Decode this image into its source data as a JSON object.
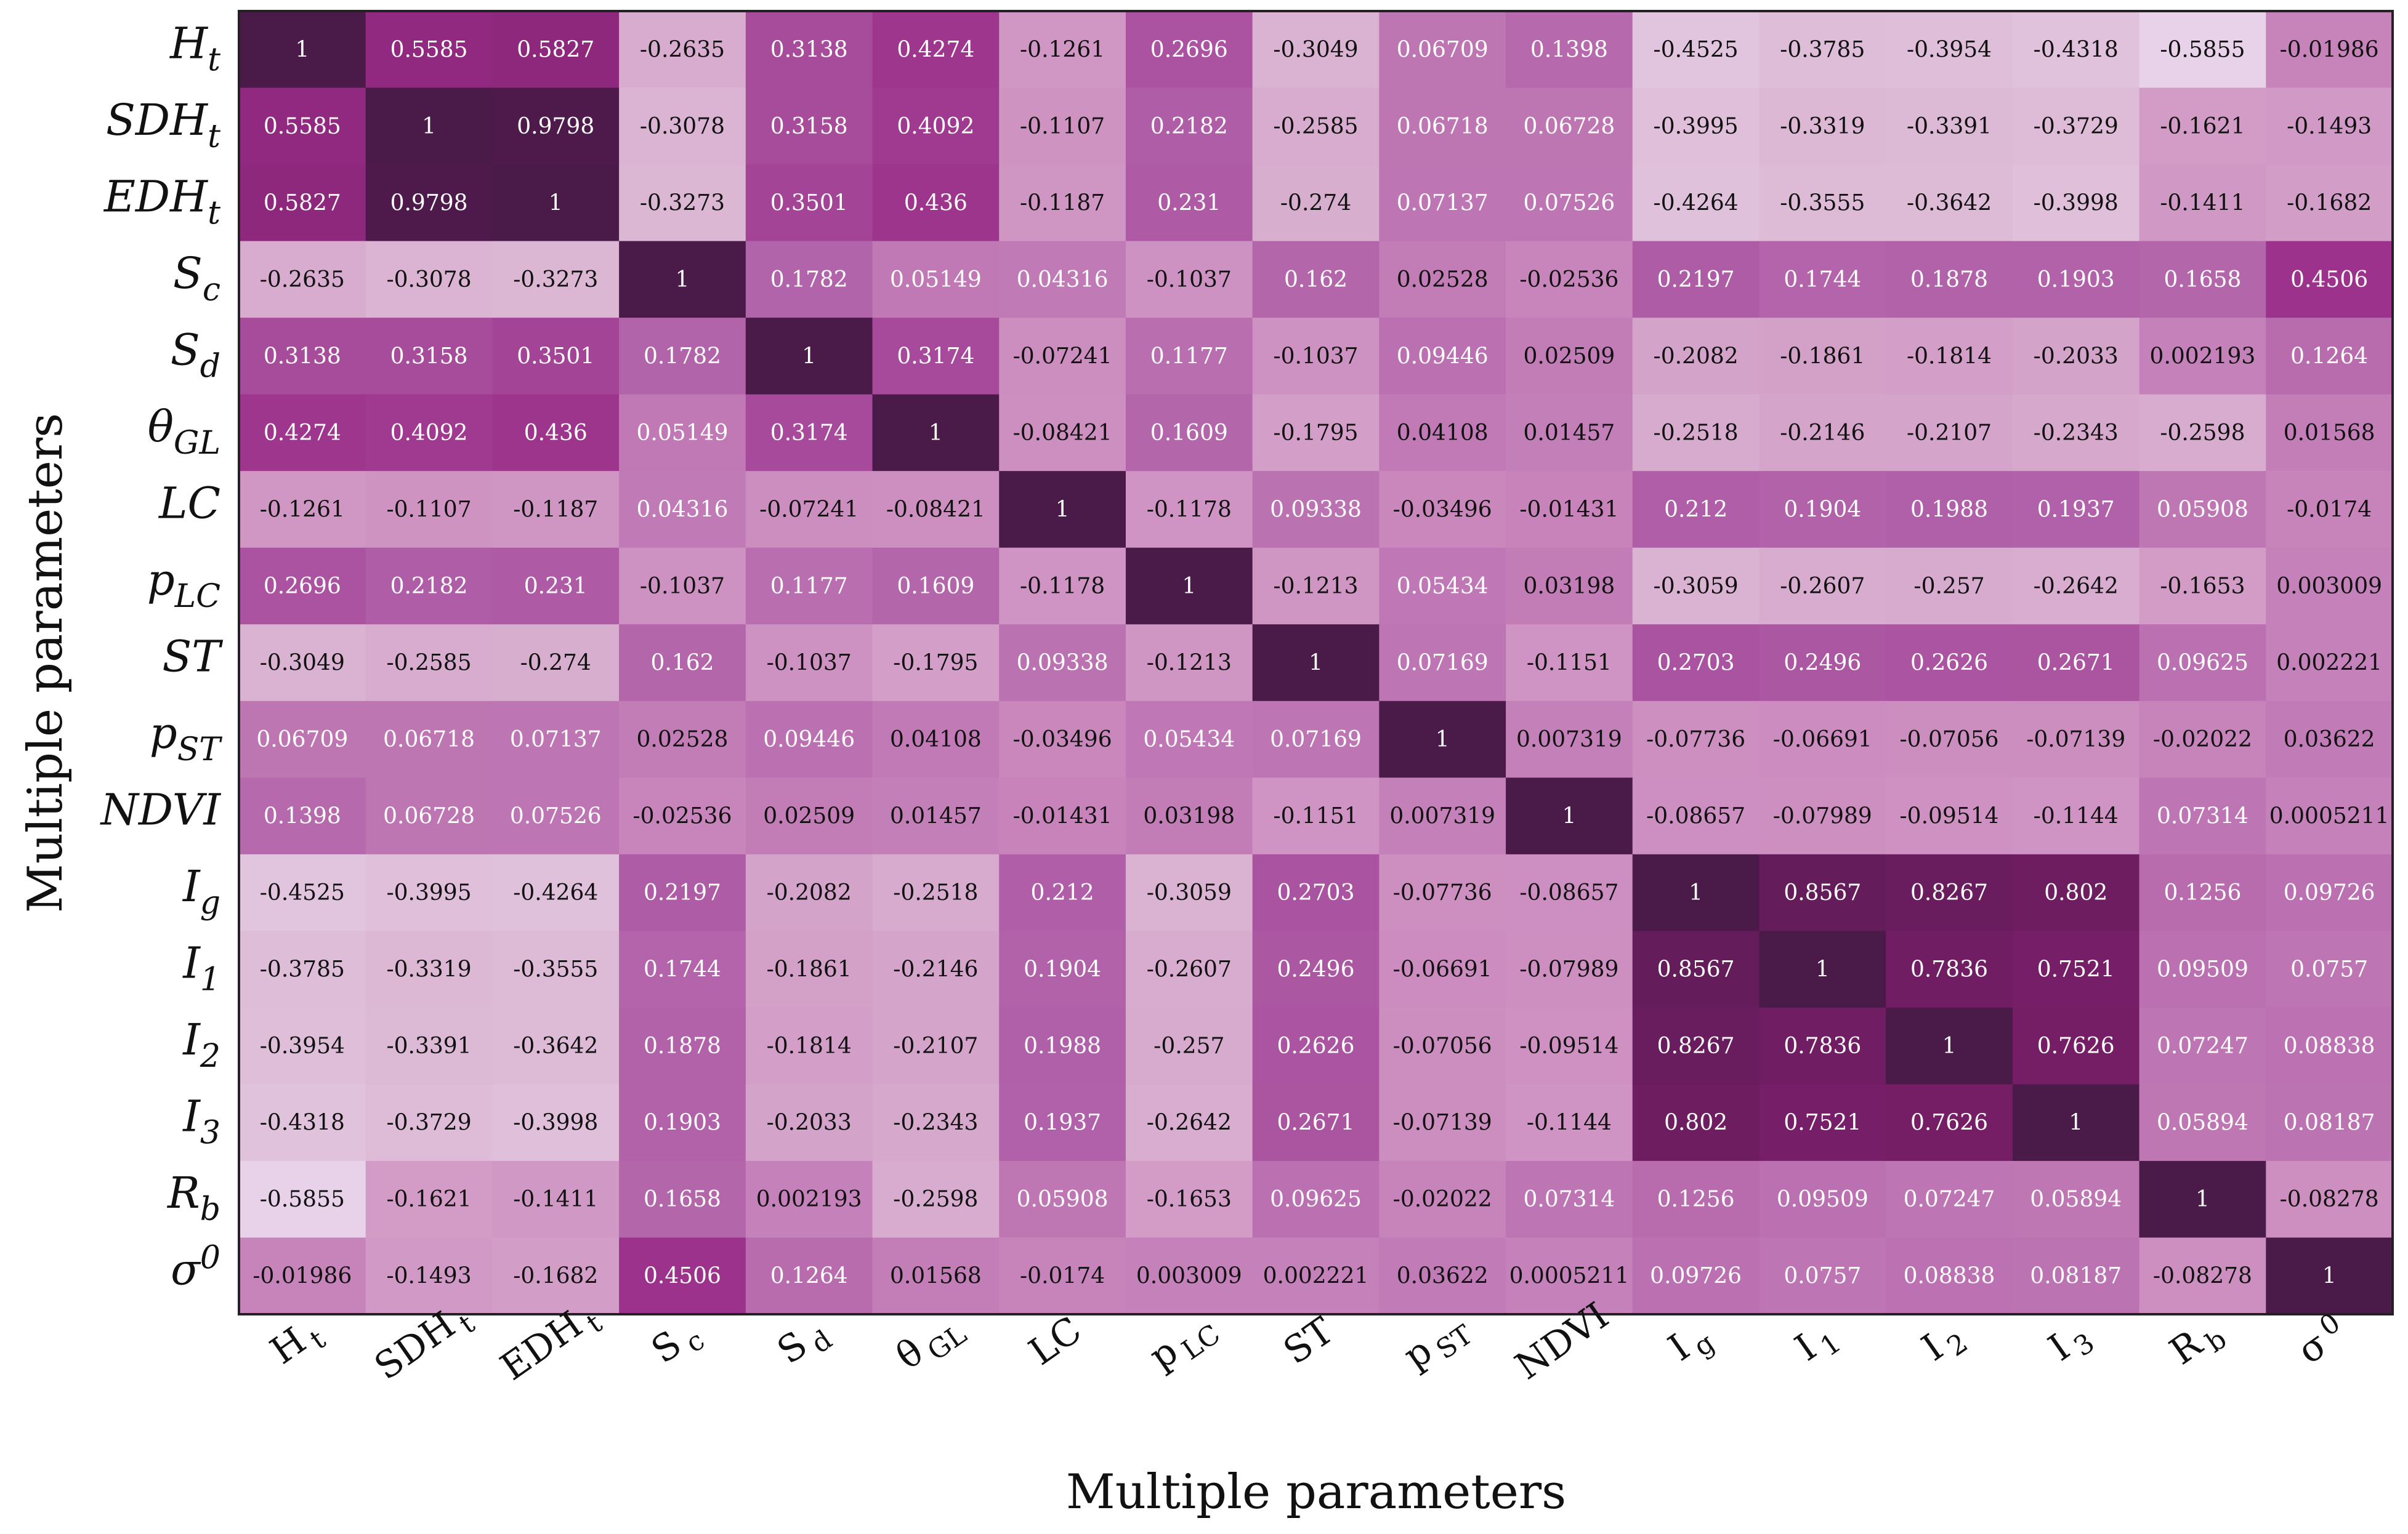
{
  "chart_data": {
    "type": "heatmap",
    "title": "",
    "xlabel": "Multiple parameters",
    "ylabel": "Multiple parameters",
    "value_range": [
      -0.6,
      1
    ],
    "colormap": [
      "#e8d3ea",
      "#dcb8d4",
      "#cc8cbf",
      "#b060a8",
      "#9b2f8a",
      "#7a1e6a",
      "#4a1a48"
    ],
    "labels": [
      {
        "base": "H",
        "sub": "t"
      },
      {
        "base": "SDH",
        "sub": "t"
      },
      {
        "base": "EDH",
        "sub": "t"
      },
      {
        "base": "S",
        "sub": "c"
      },
      {
        "base": "S",
        "sub": "d"
      },
      {
        "base": "θ",
        "sub": "GL"
      },
      {
        "base": "LC",
        "sub": ""
      },
      {
        "base": "p",
        "sub": "LC"
      },
      {
        "base": "ST",
        "sub": ""
      },
      {
        "base": "p",
        "sub": "ST"
      },
      {
        "base": "NDVI",
        "sub": ""
      },
      {
        "base": "I",
        "sub": "g"
      },
      {
        "base": "I",
        "sub": "1"
      },
      {
        "base": "I",
        "sub": "2"
      },
      {
        "base": "I",
        "sub": "3"
      },
      {
        "base": "R",
        "sub": "b"
      },
      {
        "base": "σ",
        "sub": "0"
      }
    ],
    "matrix": [
      [
        "1",
        "0.5585",
        "0.5827",
        "-0.2635",
        "0.3138",
        "0.4274",
        "-0.1261",
        "0.2696",
        "-0.3049",
        "0.06709",
        "0.1398",
        "-0.4525",
        "-0.3785",
        "-0.3954",
        "-0.4318",
        "-0.5855",
        "-0.01986"
      ],
      [
        "0.5585",
        "1",
        "0.9798",
        "-0.3078",
        "0.3158",
        "0.4092",
        "-0.1107",
        "0.2182",
        "-0.2585",
        "0.06718",
        "0.06728",
        "-0.3995",
        "-0.3319",
        "-0.3391",
        "-0.3729",
        "-0.1621",
        "-0.1493"
      ],
      [
        "0.5827",
        "0.9798",
        "1",
        "-0.3273",
        "0.3501",
        "0.436",
        "-0.1187",
        "0.231",
        "-0.274",
        "0.07137",
        "0.07526",
        "-0.4264",
        "-0.3555",
        "-0.3642",
        "-0.3998",
        "-0.1411",
        "-0.1682"
      ],
      [
        "-0.2635",
        "-0.3078",
        "-0.3273",
        "1",
        "0.1782",
        "0.05149",
        "0.04316",
        "-0.1037",
        "0.162",
        "0.02528",
        "-0.02536",
        "0.2197",
        "0.1744",
        "0.1878",
        "0.1903",
        "0.1658",
        "0.4506"
      ],
      [
        "0.3138",
        "0.3158",
        "0.3501",
        "0.1782",
        "1",
        "0.3174",
        "-0.07241",
        "0.1177",
        "-0.1037",
        "0.09446",
        "0.02509",
        "-0.2082",
        "-0.1861",
        "-0.1814",
        "-0.2033",
        "0.002193",
        "0.1264"
      ],
      [
        "0.4274",
        "0.4092",
        "0.436",
        "0.05149",
        "0.3174",
        "1",
        "-0.08421",
        "0.1609",
        "-0.1795",
        "0.04108",
        "0.01457",
        "-0.2518",
        "-0.2146",
        "-0.2107",
        "-0.2343",
        "-0.2598",
        "0.01568"
      ],
      [
        "-0.1261",
        "-0.1107",
        "-0.1187",
        "0.04316",
        "-0.07241",
        "-0.08421",
        "1",
        "-0.1178",
        "0.09338",
        "-0.03496",
        "-0.01431",
        "0.212",
        "0.1904",
        "0.1988",
        "0.1937",
        "0.05908",
        "-0.0174"
      ],
      [
        "0.2696",
        "0.2182",
        "0.231",
        "-0.1037",
        "0.1177",
        "0.1609",
        "-0.1178",
        "1",
        "-0.1213",
        "0.05434",
        "0.03198",
        "-0.3059",
        "-0.2607",
        "-0.257",
        "-0.2642",
        "-0.1653",
        "0.003009"
      ],
      [
        "-0.3049",
        "-0.2585",
        "-0.274",
        "0.162",
        "-0.1037",
        "-0.1795",
        "0.09338",
        "-0.1213",
        "1",
        "0.07169",
        "-0.1151",
        "0.2703",
        "0.2496",
        "0.2626",
        "0.2671",
        "0.09625",
        "0.002221"
      ],
      [
        "0.06709",
        "0.06718",
        "0.07137",
        "0.02528",
        "0.09446",
        "0.04108",
        "-0.03496",
        "0.05434",
        "0.07169",
        "1",
        "0.007319",
        "-0.07736",
        "-0.06691",
        "-0.07056",
        "-0.07139",
        "-0.02022",
        "0.03622"
      ],
      [
        "0.1398",
        "0.06728",
        "0.07526",
        "-0.02536",
        "0.02509",
        "0.01457",
        "-0.01431",
        "0.03198",
        "-0.1151",
        "0.007319",
        "1",
        "-0.08657",
        "-0.07989",
        "-0.09514",
        "-0.1144",
        "0.07314",
        "0.0005211"
      ],
      [
        "-0.4525",
        "-0.3995",
        "-0.4264",
        "0.2197",
        "-0.2082",
        "-0.2518",
        "0.212",
        "-0.3059",
        "0.2703",
        "-0.07736",
        "-0.08657",
        "1",
        "0.8567",
        "0.8267",
        "0.802",
        "0.1256",
        "0.09726"
      ],
      [
        "-0.3785",
        "-0.3319",
        "-0.3555",
        "0.1744",
        "-0.1861",
        "-0.2146",
        "0.1904",
        "-0.2607",
        "0.2496",
        "-0.06691",
        "-0.07989",
        "0.8567",
        "1",
        "0.7836",
        "0.7521",
        "0.09509",
        "0.0757"
      ],
      [
        "-0.3954",
        "-0.3391",
        "-0.3642",
        "0.1878",
        "-0.1814",
        "-0.2107",
        "0.1988",
        "-0.257",
        "0.2626",
        "-0.07056",
        "-0.09514",
        "0.8267",
        "0.7836",
        "1",
        "0.7626",
        "0.07247",
        "0.08838"
      ],
      [
        "-0.4318",
        "-0.3729",
        "-0.3998",
        "0.1903",
        "-0.2033",
        "-0.2343",
        "0.1937",
        "-0.2642",
        "0.2671",
        "-0.07139",
        "-0.1144",
        "0.802",
        "0.7521",
        "0.7626",
        "1",
        "0.05894",
        "0.08187"
      ],
      [
        "-0.5855",
        "-0.1621",
        "-0.1411",
        "0.1658",
        "0.002193",
        "-0.2598",
        "0.05908",
        "-0.1653",
        "0.09625",
        "-0.02022",
        "0.07314",
        "0.1256",
        "0.09509",
        "0.07247",
        "0.05894",
        "1",
        "-0.08278"
      ],
      [
        "-0.01986",
        "-0.1493",
        "-0.1682",
        "0.4506",
        "0.1264",
        "0.01568",
        "-0.0174",
        "0.003009",
        "0.002221",
        "0.03622",
        "0.0005211",
        "0.09726",
        "0.0757",
        "0.08838",
        "0.08187",
        "-0.08278",
        "1"
      ]
    ]
  }
}
